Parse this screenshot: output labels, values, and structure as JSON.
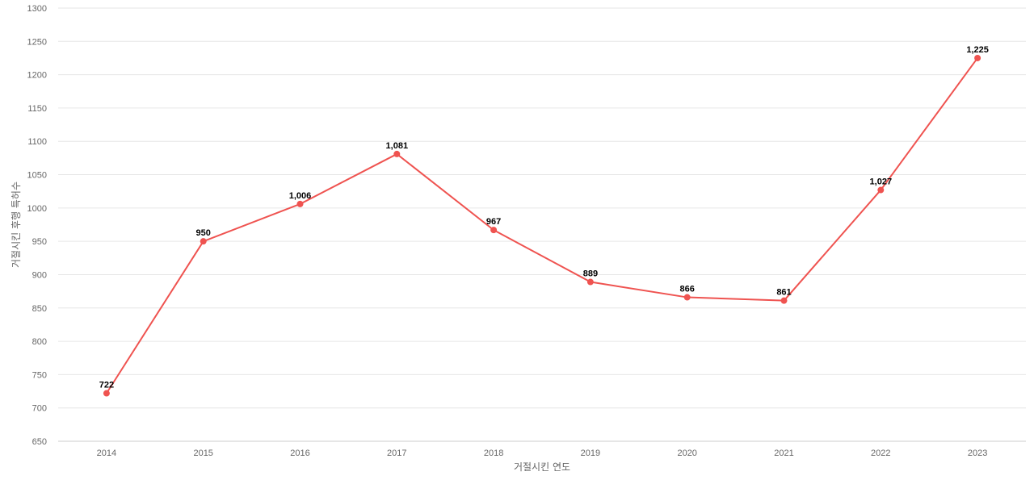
{
  "chart_data": {
    "type": "line",
    "title": "",
    "xlabel": "거절시킨 연도",
    "ylabel": "거절시킨 후행 특허수",
    "categories": [
      "2014",
      "2015",
      "2016",
      "2017",
      "2018",
      "2019",
      "2020",
      "2021",
      "2022",
      "2023"
    ],
    "series": [
      {
        "values": [
          722,
          950,
          1006,
          1081,
          967,
          889,
          866,
          861,
          1027,
          1225
        ],
        "labels": [
          "722",
          "950",
          "1,006",
          "1,081",
          "967",
          "889",
          "866",
          "861",
          "1,027",
          "1,225"
        ]
      }
    ],
    "ylim": [
      650,
      1300
    ],
    "yticks": [
      650,
      700,
      750,
      800,
      850,
      900,
      950,
      1000,
      1050,
      1100,
      1150,
      1200,
      1250,
      1300
    ],
    "grid": true,
    "legend": "none",
    "colors": {
      "line": "#ef5350",
      "grid": "#e6e6e6",
      "axis_text": "#666666",
      "label_text": "#000000"
    }
  }
}
